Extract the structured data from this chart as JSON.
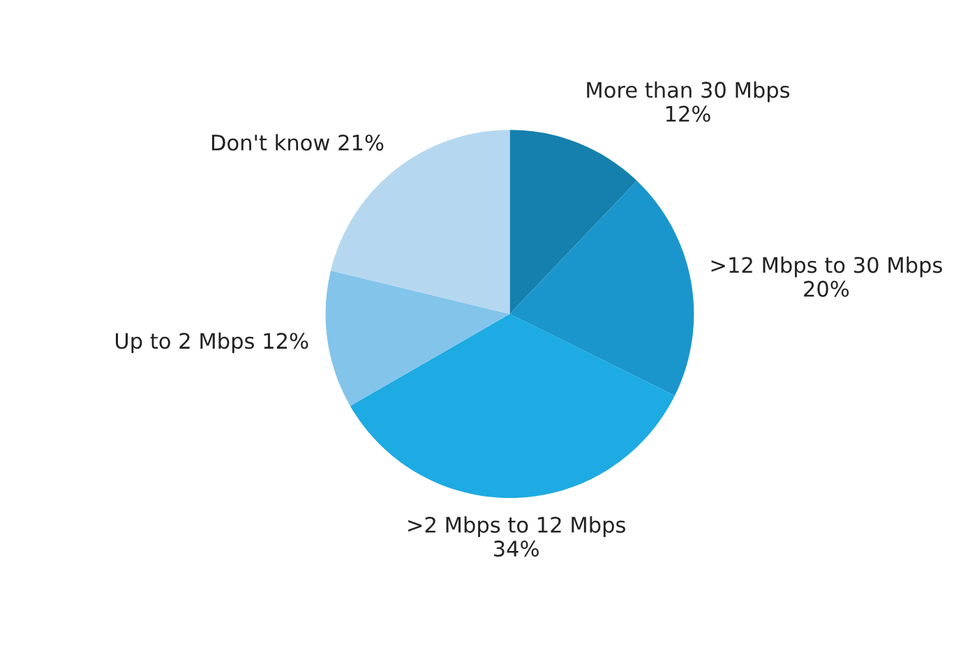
{
  "chart_data": {
    "type": "pie",
    "categories": [
      "More than 30 Mbps",
      ">12 Mbps to 30 Mbps",
      ">2 Mbps to 12 Mbps",
      "Up to 2 Mbps",
      "Don't know"
    ],
    "values": [
      12,
      20,
      34,
      12,
      21
    ],
    "value_labels": [
      "12%",
      "20%",
      "34%",
      "12%",
      "21%"
    ],
    "colors": [
      "#1580ad",
      "#1a96cc",
      "#1eaae2",
      "#83c4ea",
      "#b5d8f0"
    ],
    "legend": false
  }
}
